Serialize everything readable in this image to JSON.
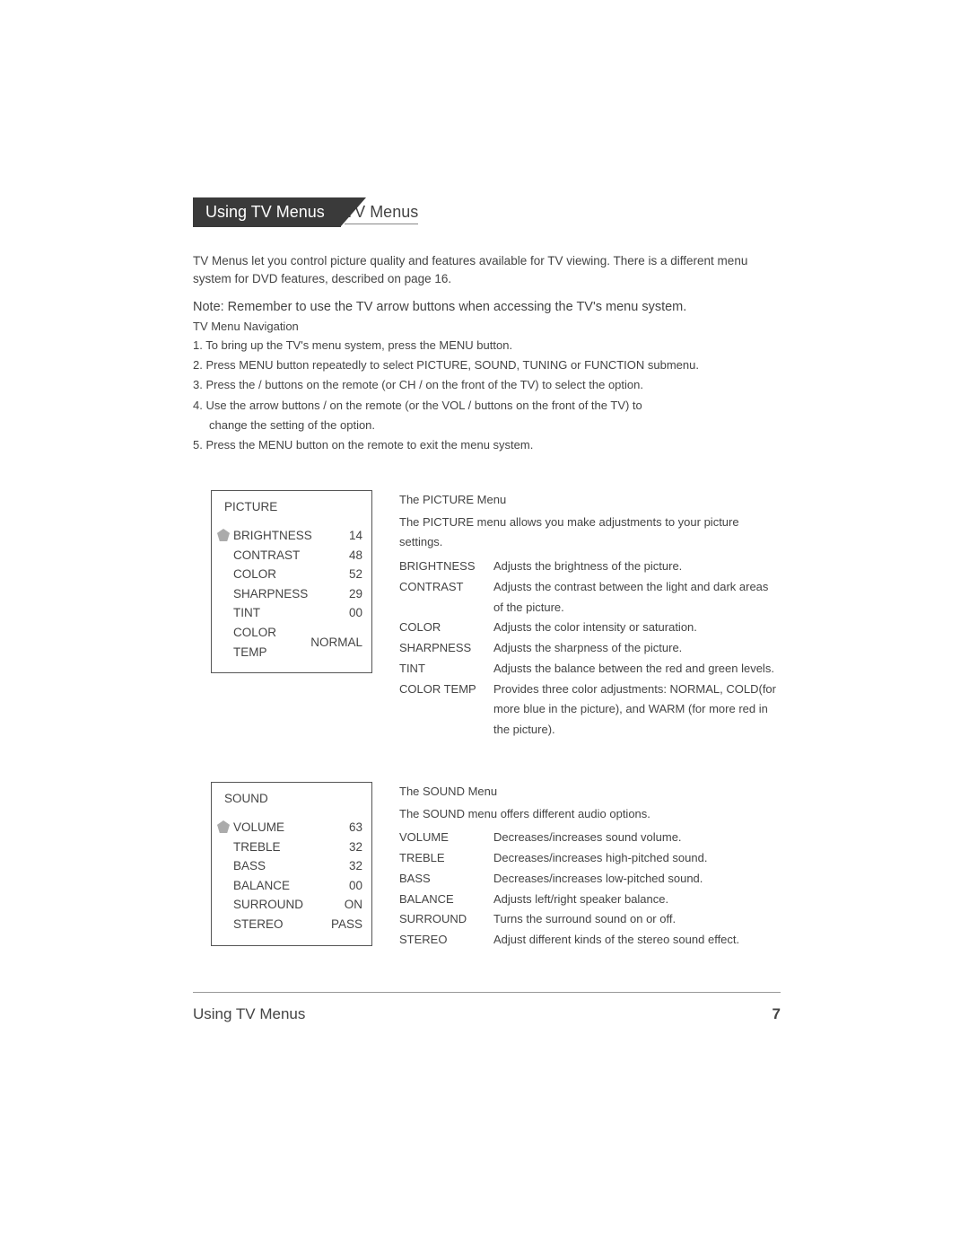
{
  "header": {
    "tab": "Using TV Menus"
  },
  "section": {
    "title": "TV Menus",
    "intro": "TV Menus let you control picture quality and features available for TV viewing. There is a different menu system for DVD features, described on page 16.",
    "note": "Note: Remember to use the TV arrow buttons when accessing the TV's menu system.",
    "nav_head": "TV Menu Navigation",
    "nav": [
      "1.  To bring up the TV's menu system, press the MENU button.",
      "2.  Press MENU button repeatedly to select PICTURE, SOUND, TUNING or FUNCTION submenu.",
      "3.  Press the      /    buttons on the remote (or CH      /     on the front of the TV) to select the option.",
      "4.  Use the arrow buttons     /    on the remote (or the VOL     /   buttons on the front of the TV) to",
      "change the setting of the option.",
      "5.  Press the MENU button on the remote to exit the menu system."
    ]
  },
  "picture": {
    "box_title": "PICTURE",
    "rows": [
      {
        "label": "BRIGHTNESS",
        "value": "14",
        "selected": true
      },
      {
        "label": "CONTRAST",
        "value": "48"
      },
      {
        "label": "COLOR",
        "value": "52"
      },
      {
        "label": "SHARPNESS",
        "value": "29"
      },
      {
        "label": "TINT",
        "value": "00"
      },
      {
        "label": "COLOR TEMP",
        "value": "NORMAL"
      }
    ],
    "desc_title": "The PICTURE Menu",
    "desc_intro": "The PICTURE menu allows you make adjustments to your picture settings.",
    "items": [
      {
        "label": "BRIGHTNESS",
        "text": "Adjusts the brightness of the picture."
      },
      {
        "label": "CONTRAST",
        "text": "Adjusts the contrast between the light and dark areas of the picture."
      },
      {
        "label": "COLOR",
        "text": "Adjusts the color intensity or saturation."
      },
      {
        "label": "SHARPNESS",
        "text": "Adjusts the sharpness of the picture."
      },
      {
        "label": "TINT",
        "text": "Adjusts the balance between the red and green levels."
      },
      {
        "label": "COLOR TEMP",
        "text": "Provides three color adjustments: NORMAL, COLD(for more blue in the picture), and WARM (for more red in the picture)."
      }
    ]
  },
  "sound": {
    "box_title": "SOUND",
    "rows": [
      {
        "label": "VOLUME",
        "value": "63",
        "selected": true
      },
      {
        "label": "TREBLE",
        "value": "32"
      },
      {
        "label": "BASS",
        "value": "32"
      },
      {
        "label": "BALANCE",
        "value": "00"
      },
      {
        "label": "SURROUND",
        "value": "ON"
      },
      {
        "label": "STEREO",
        "value": "PASS"
      }
    ],
    "desc_title": "The SOUND Menu",
    "desc_intro": "The SOUND menu offers different audio options.",
    "items": [
      {
        "label": "VOLUME",
        "text": "Decreases/increases sound volume."
      },
      {
        "label": "TREBLE",
        "text": "Decreases/increases high-pitched sound."
      },
      {
        "label": "BASS",
        "text": "Decreases/increases low-pitched sound."
      },
      {
        "label": "BALANCE",
        "text": "Adjusts left/right speaker balance."
      },
      {
        "label": "SURROUND",
        "text": "Turns the surround sound on or off."
      },
      {
        "label": "STEREO",
        "text": "Adjust different kinds of the stereo sound effect."
      }
    ]
  },
  "footer": {
    "title": "Using TV Menus",
    "page": "7"
  }
}
